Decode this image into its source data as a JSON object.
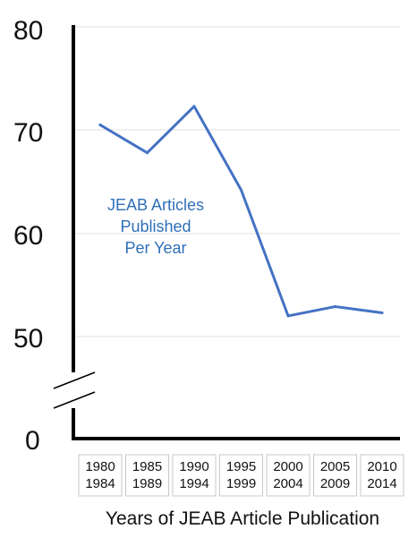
{
  "chart_data": {
    "type": "line",
    "categories": [
      [
        "1980",
        "1984"
      ],
      [
        "1985",
        "1989"
      ],
      [
        "1990",
        "1994"
      ],
      [
        "1995",
        "1999"
      ],
      [
        "2000",
        "2004"
      ],
      [
        "2005",
        "2009"
      ],
      [
        "2010",
        "2014"
      ]
    ],
    "series": [
      {
        "values": [
          70.5,
          67.8,
          72.3,
          64.2,
          52.0,
          52.9,
          52.3
        ]
      }
    ],
    "yticks": [
      "80",
      "70",
      "60",
      "50",
      "0"
    ],
    "ylim": [
      45,
      80
    ],
    "axis_break": true,
    "annotation": [
      "JEAB Articles",
      "Published",
      "Per Year"
    ],
    "xlabel": "Years of JEAB Article Publication",
    "grid": true,
    "colors": {
      "line": "#4472c4",
      "annotation": "#2f6fb8",
      "grid": "#e0e0e0",
      "axis": "#000000"
    }
  }
}
